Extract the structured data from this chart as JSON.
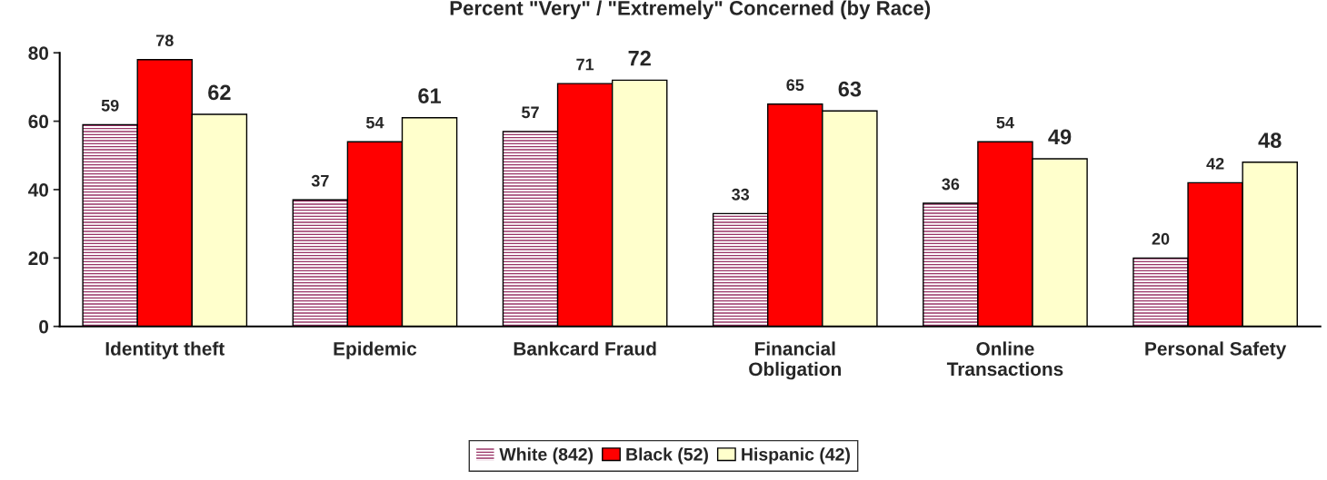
{
  "chart_data": {
    "type": "bar",
    "title": "Percent \"Very\" / \"Extremely\" Concerned (by Race)",
    "categories": [
      "Identityt theft",
      "Epidemic",
      "Bankcard Fraud",
      "Financial\nObligation",
      "Online\nTransactions",
      "Personal Safety"
    ],
    "series": [
      {
        "name": "White (842)",
        "color": "#993366",
        "values": [
          59,
          37,
          57,
          33,
          36,
          20
        ]
      },
      {
        "name": "Black (52)",
        "color": "#ff0000",
        "values": [
          78,
          54,
          71,
          65,
          54,
          42
        ]
      },
      {
        "name": "Hispanic (42)",
        "color": "#ffffcc",
        "values": [
          62,
          61,
          72,
          63,
          49,
          48
        ]
      }
    ],
    "ylim": [
      0,
      80
    ],
    "yticks": [
      0,
      20,
      40,
      60,
      80
    ],
    "grid": false,
    "legend": "bottom",
    "data_labels": true
  }
}
